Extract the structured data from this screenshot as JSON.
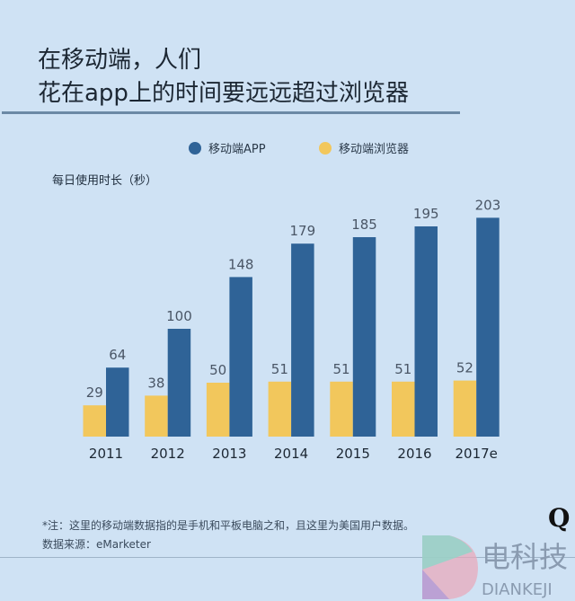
{
  "title_lines": [
    "在移动端，人们",
    "花在app上的时间要远远超过浏览器"
  ],
  "chart_data": {
    "type": "bar",
    "title": "在移动端，人们花在app上的时间要远远超过浏览器",
    "ylabel": "每日使用时长（秒）",
    "xlabel": "",
    "categories": [
      "2011",
      "2012",
      "2013",
      "2014",
      "2015",
      "2016",
      "2017e"
    ],
    "series": [
      {
        "name": "移动端浏览器",
        "color": "#f2c75c",
        "values": [
          29,
          38,
          50,
          51,
          51,
          51,
          52
        ]
      },
      {
        "name": "移动端APP",
        "color": "#2f6397",
        "values": [
          64,
          100,
          148,
          179,
          185,
          195,
          203
        ]
      }
    ],
    "legend_order": [
      "移动端APP",
      "移动端浏览器"
    ],
    "legend_placement": "top-center",
    "grid": false,
    "data_labels": true
  },
  "notes": {
    "footnote": "*注：这里的移动端数据指的是手机和平板电脑之和，且这里为美国用户数据。",
    "source": "数据来源：eMarketer"
  },
  "watermark": {
    "text": "电科技",
    "sub": "DIANKEJI",
    "logo": "Q"
  }
}
